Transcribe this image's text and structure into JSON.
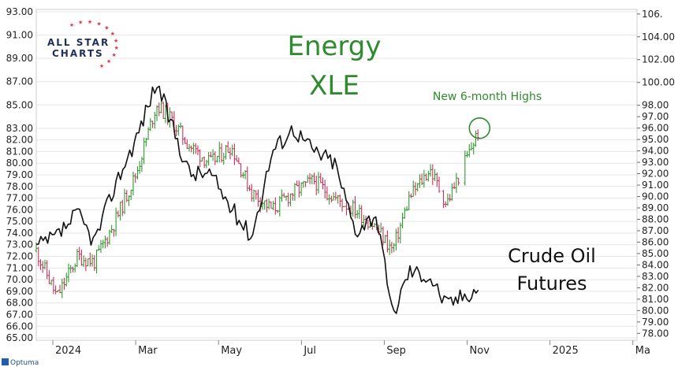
{
  "chart_data": {
    "type": "line",
    "title": "Energy XLE",
    "title_lines": [
      "Energy",
      "XLE"
    ],
    "subtitle": "",
    "annotations": {
      "highs": "New 6-month Highs",
      "crude_lines": [
        "Crude Oil",
        "Futures"
      ]
    },
    "logo": {
      "line1": "ALL STAR",
      "line2": "CHARTS"
    },
    "footer": "Optuma",
    "colors": {
      "up": "#2e9b2e",
      "down": "#c8325a",
      "crude": "#111111",
      "annotation": "#2e8b2e",
      "grid": "#e6e6e6"
    },
    "x_axis": {
      "labels": [
        "2024",
        "Mar",
        "May",
        "Jul",
        "Sep",
        "Nov",
        "2025",
        "Ma"
      ],
      "values": [
        0,
        2,
        4,
        6,
        8,
        10,
        12,
        14
      ],
      "range": [
        -0.4,
        14.1
      ]
    },
    "y_left": {
      "label": "",
      "range": [
        64.8,
        93.2
      ],
      "ticks": [
        "93.00",
        "91.00",
        "89.00",
        "87.00",
        "85.00",
        "83.00",
        "82.00",
        "81.00",
        "80.00",
        "79.00",
        "78.00",
        "77.00",
        "76.00",
        "75.00",
        "74.00",
        "73.00",
        "72.00",
        "71.00",
        "70.00",
        "69.00",
        "68.00",
        "67.00",
        "66.00",
        "65.00"
      ]
    },
    "y_right": {
      "label": "",
      "range": [
        77.4,
        106.4
      ],
      "ticks": [
        "106.",
        "104.00",
        "102.00",
        "100.00",
        "98.00",
        "97.00",
        "96.00",
        "95.00",
        "94.00",
        "93.00",
        "92.00",
        "91.00",
        "90.00",
        "89.00",
        "88.00",
        "87.00",
        "86.00",
        "85.00",
        "84.00",
        "83.00",
        "82.00",
        "81.00",
        "80.00",
        "79.00",
        "78.00"
      ]
    },
    "series": [
      {
        "name": "XLE",
        "kind": "bars",
        "axis": "left",
        "x": [
          -0.4,
          0.1,
          0.6,
          1.0,
          1.5,
          2.0,
          2.5,
          2.8,
          3.3,
          3.8,
          4.3,
          4.8,
          5.3,
          5.8,
          6.3,
          6.8,
          7.3,
          7.8,
          8.2,
          8.6,
          9.1,
          9.5,
          10.0,
          10.3
        ],
        "close": [
          72.5,
          68.5,
          72.0,
          71.5,
          75.0,
          79.0,
          85.0,
          84.0,
          81.5,
          80.0,
          81.5,
          77.5,
          76.0,
          77.5,
          78.5,
          77.0,
          76.0,
          74.5,
          72.5,
          77.0,
          79.5,
          76.5,
          80.5,
          83.0
        ]
      },
      {
        "name": "Crude Oil Futures",
        "kind": "line",
        "axis": "right",
        "x": [
          -0.4,
          0.1,
          0.6,
          1.0,
          1.5,
          2.0,
          2.5,
          2.8,
          3.3,
          3.8,
          4.3,
          4.8,
          5.3,
          5.8,
          6.3,
          6.8,
          7.3,
          7.8,
          8.2,
          8.6,
          9.1,
          9.5,
          10.0,
          10.3
        ],
        "y": [
          85.5,
          86.5,
          88.5,
          86.0,
          91.0,
          95.0,
          100.0,
          97.0,
          92.0,
          92.0,
          89.0,
          86.5,
          94.0,
          96.0,
          94.0,
          93.0,
          87.0,
          88.5,
          79.5,
          83.5,
          83.0,
          80.5,
          81.5,
          82.0
        ]
      }
    ],
    "highlight": {
      "x": 10.3,
      "y": 83.0,
      "axis": "left"
    }
  }
}
